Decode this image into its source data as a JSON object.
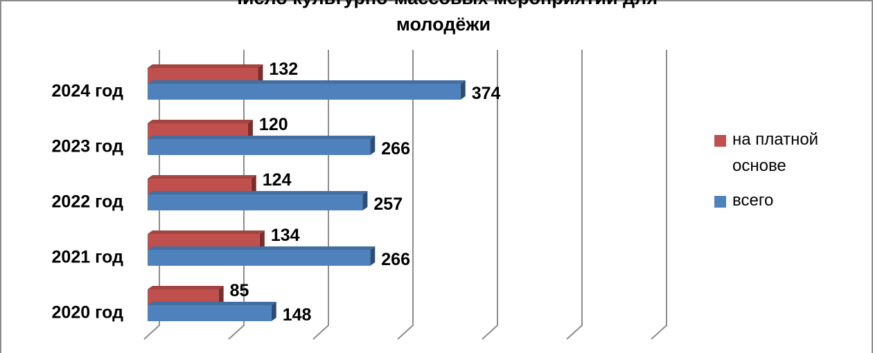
{
  "chart_data": {
    "type": "bar3d-horizontal",
    "title": "Число культурно-массовых мероприятий для молодёжи",
    "categories": [
      "2020 год",
      "2021 год",
      "2022 год",
      "2023 год",
      "2024 год"
    ],
    "series": [
      {
        "name": "на платной основе",
        "color": "#c0504d",
        "values": [
          85,
          134,
          124,
          120,
          132
        ]
      },
      {
        "name": "всего",
        "color": "#4f81bd",
        "values": [
          148,
          266,
          257,
          266,
          374
        ]
      }
    ],
    "xlim": [
      0,
      600
    ],
    "xticks": [
      0,
      100,
      200,
      300,
      400,
      500,
      600
    ],
    "grid": true,
    "legend": "right"
  }
}
